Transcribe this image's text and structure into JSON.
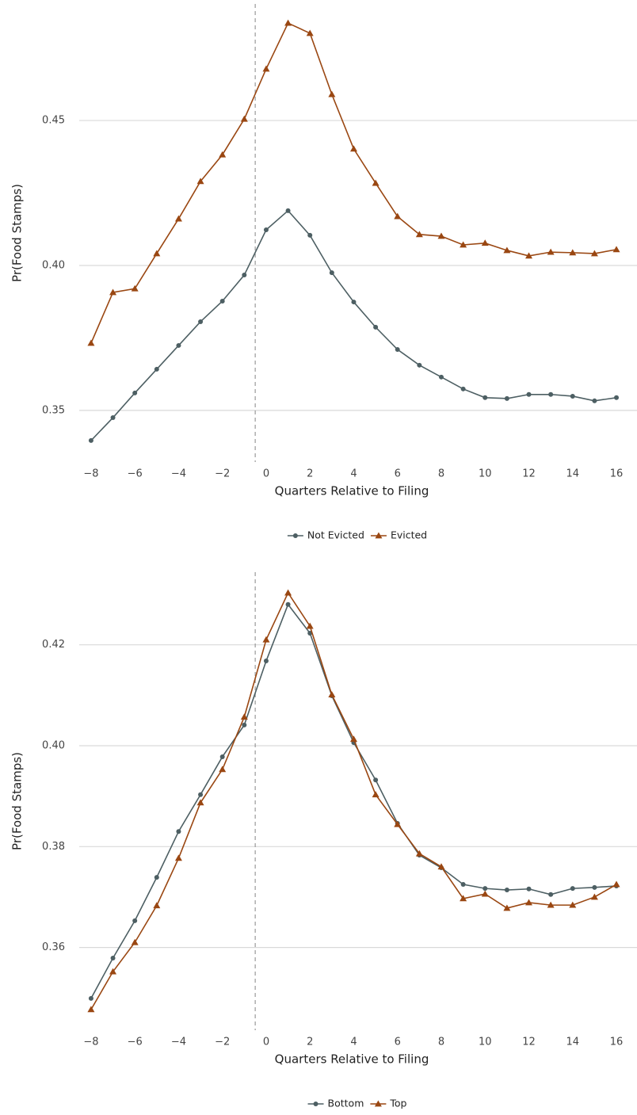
{
  "chart_data": [
    {
      "type": "line",
      "x": [
        -8,
        -7,
        -6,
        -5,
        -4,
        -3,
        -2,
        -1,
        0,
        1,
        2,
        3,
        4,
        5,
        6,
        7,
        8,
        9,
        10,
        11,
        12,
        13,
        14,
        15,
        16
      ],
      "series": [
        {
          "name": "Not Evicted",
          "color": "#4d5f63",
          "marker": "circle",
          "values": [
            0.3396,
            0.3475,
            0.356,
            0.3642,
            0.3724,
            0.3806,
            0.3877,
            0.3967,
            0.4123,
            0.4189,
            0.4104,
            0.3975,
            0.3874,
            0.3787,
            0.371,
            0.3656,
            0.3615,
            0.3574,
            0.3544,
            0.3541,
            0.3555,
            0.3555,
            0.3549,
            0.3533,
            0.3544
          ]
        },
        {
          "name": "Evicted",
          "color": "#9a4712",
          "marker": "triangle",
          "values": [
            0.3732,
            0.3907,
            0.392,
            0.4041,
            0.4161,
            0.429,
            0.4382,
            0.4505,
            0.4678,
            0.4836,
            0.4801,
            0.459,
            0.4402,
            0.4284,
            0.4169,
            0.4107,
            0.4101,
            0.4071,
            0.4077,
            0.4052,
            0.4033,
            0.4046,
            0.4044,
            0.4041,
            0.4055
          ]
        }
      ],
      "xlabel": "Quarters Relative to Filing",
      "ylabel": "Pr(Food Stamps)",
      "xlim": [
        -8.54,
        16.94
      ],
      "ylim": [
        0.3322,
        0.4902
      ],
      "xticks": [
        {
          "value": -8,
          "label": "−8"
        },
        {
          "value": -6,
          "label": "−6"
        },
        {
          "value": -4,
          "label": "−4"
        },
        {
          "value": -2,
          "label": "−2"
        },
        0,
        2,
        4,
        6,
        8,
        10,
        12,
        14,
        16
      ],
      "yticks": [
        0.35,
        {
          "value": 0.4,
          "label": "0.40"
        },
        0.45
      ],
      "grid": true,
      "vline": -0.5,
      "legend": "bottom"
    },
    {
      "type": "line",
      "x": [
        -8,
        -7,
        -6,
        -5,
        -4,
        -3,
        -2,
        -1,
        0,
        1,
        2,
        3,
        4,
        5,
        6,
        7,
        8,
        9,
        10,
        11,
        12,
        13,
        14,
        15,
        16
      ],
      "series": [
        {
          "name": "Bottom",
          "color": "#4d5f63",
          "marker": "circle",
          "values": [
            0.3499,
            0.3579,
            0.3653,
            0.3739,
            0.383,
            0.3903,
            0.3978,
            0.4041,
            0.4168,
            0.428,
            0.4223,
            0.4099,
            0.4006,
            0.3932,
            0.3846,
            0.3783,
            0.3758,
            0.3725,
            0.3717,
            0.3714,
            0.3716,
            0.3705,
            0.3717,
            0.3719,
            0.3722
          ]
        },
        {
          "name": "Top",
          "color": "#9a4712",
          "marker": "triangle",
          "values": [
            0.3477,
            0.3552,
            0.361,
            0.3683,
            0.3777,
            0.3887,
            0.3953,
            0.4057,
            0.421,
            0.4303,
            0.4237,
            0.4101,
            0.4013,
            0.3903,
            0.3844,
            0.3786,
            0.376,
            0.3697,
            0.3706,
            0.3678,
            0.3689,
            0.3684,
            0.3684,
            0.37,
            0.3725
          ]
        }
      ],
      "xlabel": "Quarters Relative to Filing",
      "ylabel": "Pr(Food Stamps)",
      "xlim": [
        -8.54,
        16.94
      ],
      "ylim": [
        0.3436,
        0.4344
      ],
      "xticks": [
        {
          "value": -8,
          "label": "−8"
        },
        {
          "value": -6,
          "label": "−6"
        },
        {
          "value": -4,
          "label": "−4"
        },
        {
          "value": -2,
          "label": "−2"
        },
        0,
        2,
        4,
        6,
        8,
        10,
        12,
        14,
        16
      ],
      "yticks": [
        0.36,
        0.38,
        {
          "value": 0.4,
          "label": "0.40"
        },
        0.42
      ],
      "grid": true,
      "vline": -0.5,
      "legend": "bottom"
    }
  ]
}
